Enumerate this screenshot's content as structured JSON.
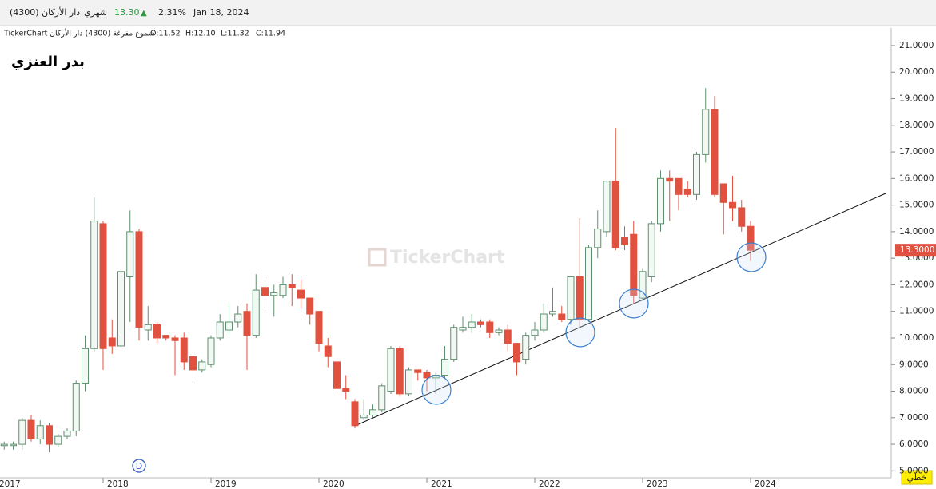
{
  "chart_data": {
    "type": "candlestick",
    "header": {
      "symbol": "دار الأركان (4300)",
      "period": "شهري",
      "price": "13.30",
      "arrow": "▲",
      "change": "2.31%",
      "date": "Jan 18, 2024"
    },
    "info": {
      "source": "TickerChart",
      "series_name": "شموع مفرغة (4300) دار الأركان",
      "open": "O:11.52",
      "high": "H:12.10",
      "low": "L:11.32",
      "close": "C:11.94"
    },
    "author": "بدر العنزي",
    "watermark": "TickerChart",
    "event_marker": "D",
    "scale_button": "خطي",
    "up_color": "#5f8f6f",
    "up_fill": "#f2f8f3",
    "down_color": "#e0513f",
    "grid": false,
    "categories": [
      "2017",
      null,
      null,
      null,
      null,
      null,
      null,
      null,
      null,
      null,
      null,
      null,
      "2018",
      null,
      null,
      null,
      null,
      null,
      null,
      null,
      null,
      null,
      null,
      null,
      "2019",
      null,
      null,
      null,
      null,
      null,
      null,
      null,
      null,
      null,
      null,
      null,
      "2020",
      null,
      null,
      null,
      null,
      null,
      null,
      null,
      null,
      null,
      null,
      null,
      "2021",
      null,
      null,
      null,
      null,
      null,
      null,
      null,
      null,
      null,
      null,
      null,
      "2022",
      null,
      null,
      null,
      null,
      null,
      null,
      null,
      null,
      null,
      null,
      null,
      "2023",
      null,
      null,
      null,
      null,
      null,
      null,
      null,
      null,
      null,
      null,
      null,
      "2024"
    ],
    "open": [
      null,
      5.95,
      5.95,
      6.0,
      6.9,
      6.2,
      6.7,
      6.0,
      6.3,
      6.5,
      8.3,
      9.6,
      14.3,
      10.0,
      9.7,
      12.3,
      14.0,
      10.3,
      10.5,
      10.1,
      10.0,
      10.0,
      9.3,
      8.8,
      9.0,
      10.0,
      10.3,
      10.6,
      11.0,
      10.1,
      11.9,
      11.6,
      11.6,
      12.0,
      11.8,
      11.5,
      11.0,
      9.7,
      9.1,
      8.1,
      7.6,
      7.0,
      7.1,
      7.3,
      8.0,
      9.6,
      7.9,
      8.8,
      8.7,
      8.5,
      8.6,
      9.2,
      10.3,
      10.4,
      10.6,
      10.6,
      10.2,
      10.3,
      9.8,
      9.2,
      10.1,
      10.3,
      10.9,
      10.9,
      10.7,
      12.3,
      10.7,
      13.4,
      14.0,
      15.9,
      13.8,
      13.9,
      11.5,
      12.3,
      14.3,
      16.0,
      16.0,
      15.6,
      15.4,
      16.9,
      18.6,
      15.8,
      15.1,
      14.9,
      14.2
    ],
    "high": [
      null,
      6.1,
      6.1,
      7.0,
      7.1,
      6.9,
      6.8,
      6.4,
      6.6,
      8.4,
      10.1,
      15.3,
      14.4,
      10.7,
      12.6,
      14.8,
      14.1,
      11.2,
      10.6,
      10.1,
      10.1,
      10.2,
      9.4,
      9.2,
      10.1,
      10.9,
      11.3,
      11.2,
      11.3,
      12.4,
      12.3,
      12.0,
      12.3,
      12.4,
      12.2,
      11.5,
      11.0,
      10.0,
      9.1,
      8.6,
      7.7,
      7.7,
      7.5,
      8.3,
      9.7,
      9.7,
      8.9,
      8.8,
      8.8,
      8.7,
      9.7,
      10.5,
      10.8,
      10.9,
      10.7,
      10.7,
      10.4,
      10.5,
      9.8,
      10.2,
      10.6,
      11.3,
      11.9,
      11.2,
      12.3,
      14.5,
      13.5,
      14.8,
      15.9,
      17.9,
      14.2,
      14.4,
      12.6,
      14.4,
      16.3,
      16.3,
      16.0,
      15.9,
      17.0,
      19.4,
      19.1,
      15.8,
      16.1,
      15.2,
      14.4
    ],
    "low": [
      null,
      5.8,
      5.8,
      5.8,
      6.1,
      6.0,
      5.7,
      5.9,
      6.2,
      6.3,
      8.0,
      9.5,
      8.8,
      9.4,
      9.6,
      10.6,
      9.9,
      9.9,
      9.8,
      9.9,
      8.6,
      8.8,
      8.3,
      8.7,
      8.9,
      9.9,
      10.1,
      10.4,
      8.8,
      10.0,
      11.0,
      10.8,
      11.5,
      11.2,
      11.1,
      10.5,
      9.5,
      8.9,
      7.9,
      7.7,
      6.6,
      6.9,
      7.0,
      7.2,
      7.9,
      7.8,
      7.8,
      8.4,
      8.0,
      7.9,
      8.5,
      9.1,
      10.2,
      10.2,
      10.4,
      10.0,
      10.1,
      9.5,
      8.6,
      9.0,
      9.9,
      10.2,
      10.8,
      10.6,
      10.5,
      10.4,
      10.6,
      13.0,
      13.8,
      13.3,
      13.3,
      11.3,
      11.4,
      12.1,
      14.0,
      14.4,
      14.8,
      15.3,
      15.2,
      16.6,
      15.3,
      13.9,
      14.4,
      14.0,
      12.9
    ],
    "close": [
      null,
      6.0,
      6.0,
      6.9,
      6.2,
      6.7,
      6.0,
      6.3,
      6.5,
      8.3,
      9.6,
      14.4,
      9.6,
      9.7,
      12.5,
      14.0,
      10.4,
      10.5,
      10.0,
      10.0,
      9.9,
      9.1,
      8.8,
      9.1,
      10.0,
      10.6,
      10.6,
      10.9,
      10.1,
      11.8,
      11.6,
      11.7,
      12.0,
      11.9,
      11.5,
      10.9,
      9.8,
      9.3,
      8.1,
      8.0,
      6.7,
      7.1,
      7.3,
      8.2,
      9.6,
      7.9,
      8.8,
      8.7,
      8.5,
      8.6,
      9.2,
      10.4,
      10.4,
      10.6,
      10.5,
      10.2,
      10.3,
      9.8,
      9.1,
      10.1,
      10.3,
      10.9,
      11.0,
      10.7,
      12.3,
      10.7,
      13.4,
      14.1,
      15.9,
      13.4,
      13.5,
      11.6,
      12.5,
      14.3,
      16.0,
      15.9,
      15.4,
      15.4,
      16.9,
      18.6,
      15.4,
      15.1,
      14.9,
      14.2,
      13.3
    ],
    "ylim": [
      4.74,
      21.66
    ],
    "yticks": [
      {
        "value": 5,
        "label": "5.0000"
      },
      {
        "value": 6,
        "label": "6.0000"
      },
      {
        "value": 7,
        "label": "7.0000"
      },
      {
        "value": 8,
        "label": "8.0000"
      },
      {
        "value": 9,
        "label": "9.0000"
      },
      {
        "value": 10,
        "label": "10.0000"
      },
      {
        "value": 11,
        "label": "11.0000"
      },
      {
        "value": 12,
        "label": "12.0000"
      },
      {
        "value": 13,
        "label": "13.0000"
      },
      {
        "value": 14,
        "label": "14.0000"
      },
      {
        "value": 15,
        "label": "15.0000"
      },
      {
        "value": 16,
        "label": "16.0000"
      },
      {
        "value": 17,
        "label": "17.0000"
      },
      {
        "value": 18,
        "label": "18.0000"
      },
      {
        "value": 19,
        "label": "19.0000"
      },
      {
        "value": 20,
        "label": "20.0000"
      },
      {
        "value": 21,
        "label": "21.0000"
      }
    ],
    "last_price": {
      "value": 13.3,
      "label": "13.3000"
    }
  }
}
